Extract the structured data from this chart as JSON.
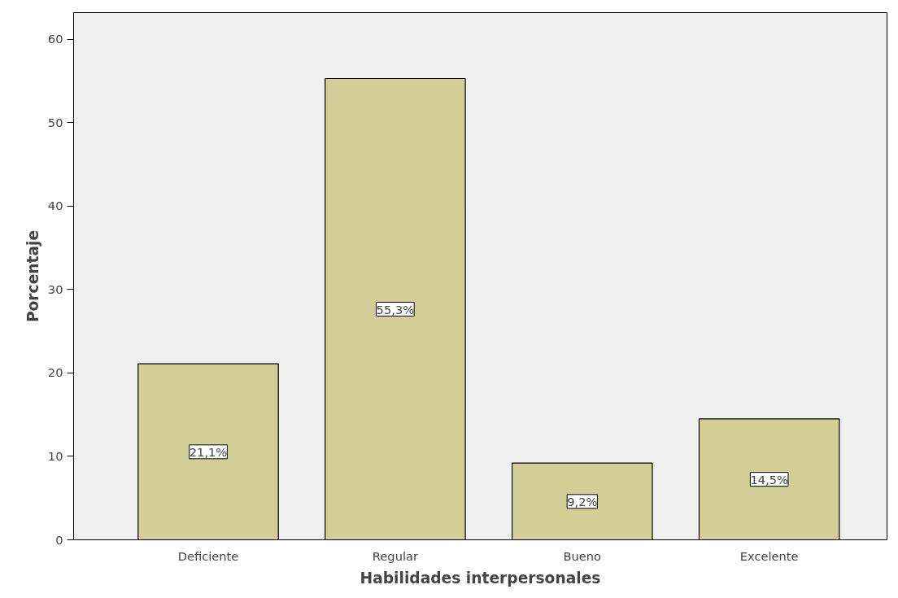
{
  "chart_data": {
    "type": "bar",
    "xlabel": "Habilidades interpersonales",
    "ylabel": "Porcentaje",
    "categories": [
      "Deficiente",
      "Regular",
      "Bueno",
      "Excelente"
    ],
    "values": [
      21.1,
      55.3,
      9.2,
      14.5
    ],
    "value_labels": [
      "21,1%",
      "55,3%",
      "9,2%",
      "14,5%"
    ],
    "color": "#d3ce97",
    "ylim": [
      0,
      63.2
    ],
    "yticks": [
      0,
      10,
      20,
      30,
      40,
      50,
      60
    ],
    "grid": false
  }
}
